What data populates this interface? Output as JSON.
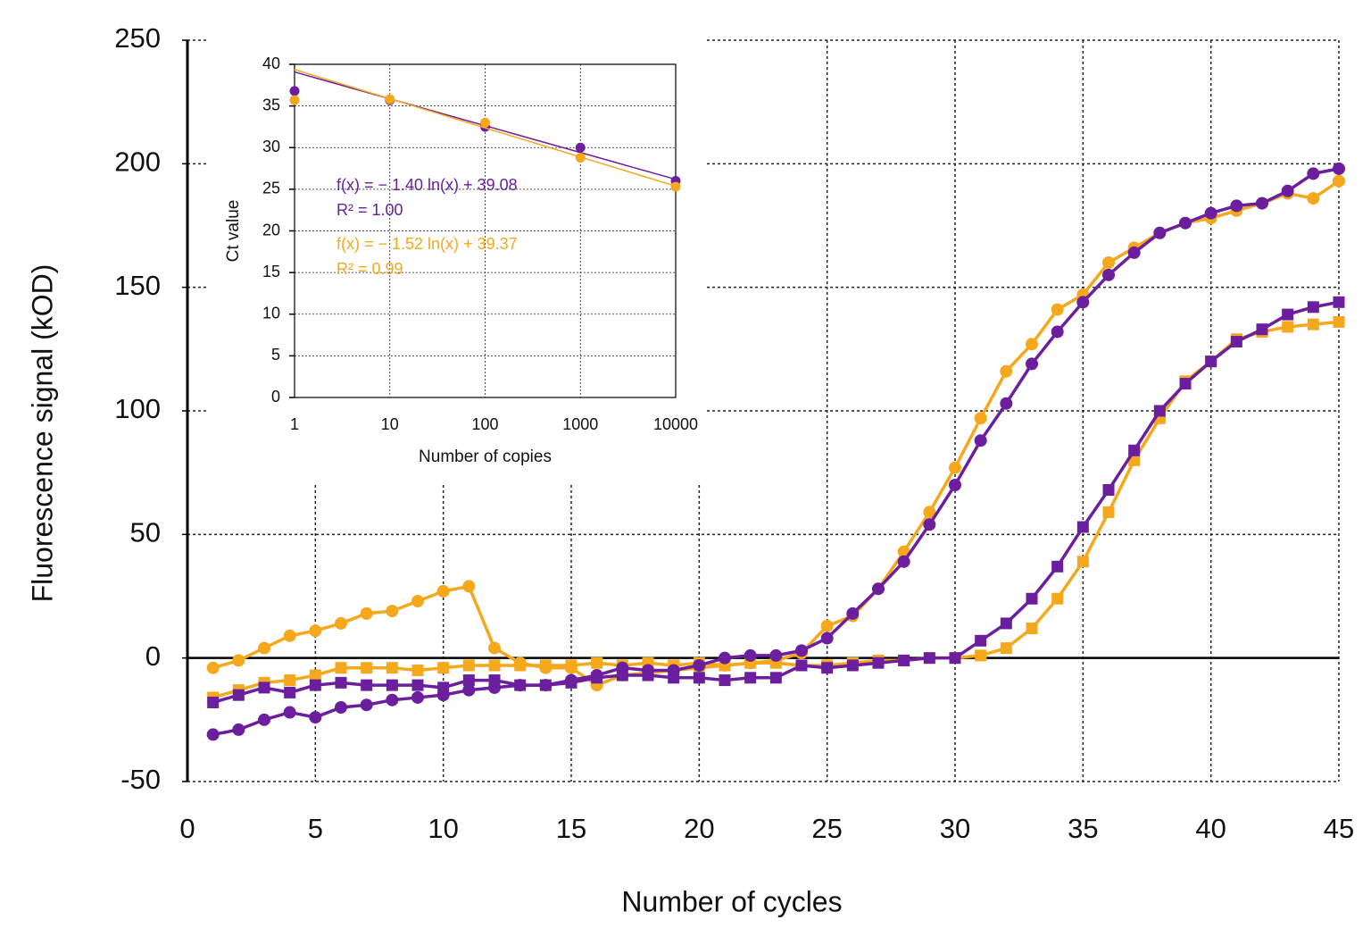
{
  "chart_data": [
    {
      "type": "line",
      "xlabel": "Number of cycles",
      "ylabel": "Fluorescence signal (kOD)",
      "x": [
        1,
        2,
        3,
        4,
        5,
        6,
        7,
        8,
        9,
        10,
        11,
        12,
        13,
        14,
        15,
        16,
        17,
        18,
        19,
        20,
        21,
        22,
        23,
        24,
        25,
        26,
        27,
        28,
        29,
        30,
        31,
        32,
        33,
        34,
        35,
        36,
        37,
        38,
        39,
        40,
        41,
        42,
        43,
        44,
        45
      ],
      "xlim": [
        0,
        45
      ],
      "ylim": [
        -50,
        250
      ],
      "xticks": [
        0,
        5,
        10,
        15,
        20,
        25,
        30,
        35,
        40,
        45
      ],
      "yticks": [
        -50,
        0,
        50,
        100,
        150,
        200,
        250
      ],
      "grid": true,
      "series": [
        {
          "color": "#f5a81c",
          "marker": "circle",
          "values": [
            -4,
            -1,
            4,
            9,
            11,
            14,
            18,
            19,
            23,
            27,
            29,
            4,
            -2,
            -4,
            -4,
            -11,
            -7,
            -6,
            -5,
            -4,
            -3,
            -2,
            -1,
            2,
            13,
            17,
            28,
            43,
            59,
            77,
            97,
            116,
            127,
            141,
            147,
            160,
            166,
            172,
            176,
            178,
            181,
            184,
            188,
            186,
            193
          ]
        },
        {
          "color": "#f5a81c",
          "marker": "square",
          "values": [
            -16,
            -13,
            -10,
            -9,
            -7,
            -4,
            -4,
            -4,
            -5,
            -4,
            -3,
            -3,
            -3,
            -3,
            -3,
            -2,
            -3,
            -2,
            -3,
            -2,
            -3,
            -2,
            -2,
            -3,
            -3,
            -2,
            -1,
            -1,
            0,
            0,
            1,
            4,
            12,
            24,
            39,
            59,
            80,
            97,
            112,
            120,
            129,
            132,
            134,
            135,
            136
          ]
        },
        {
          "color": "#6b1f9e",
          "marker": "circle",
          "values": [
            -31,
            -29,
            -25,
            -22,
            -24,
            -20,
            -19,
            -17,
            -16,
            -15,
            -13,
            -12,
            -11,
            -11,
            -9,
            -7,
            -4,
            -5,
            -5,
            -3,
            0,
            1,
            1,
            3,
            8,
            18,
            28,
            39,
            54,
            70,
            88,
            103,
            119,
            132,
            144,
            155,
            164,
            172,
            176,
            180,
            183,
            184,
            189,
            196,
            198
          ]
        },
        {
          "color": "#6b1f9e",
          "marker": "square",
          "values": [
            -18,
            -15,
            -12,
            -14,
            -11,
            -10,
            -11,
            -11,
            -11,
            -12,
            -9,
            -9,
            -11,
            -11,
            -10,
            -8,
            -7,
            -7,
            -8,
            -8,
            -9,
            -8,
            -8,
            -3,
            -4,
            -3,
            -2,
            -1,
            0,
            0,
            7,
            14,
            24,
            37,
            53,
            68,
            84,
            100,
            111,
            120,
            128,
            133,
            139,
            142,
            144
          ]
        }
      ]
    },
    {
      "type": "scatter",
      "xlabel": "Number of copies",
      "ylabel": "Ct value",
      "xscale": "log",
      "x": [
        1,
        10,
        100,
        1000,
        10000
      ],
      "xlim": [
        1,
        10000
      ],
      "ylim": [
        0,
        40
      ],
      "xticks": [
        1,
        10,
        100,
        1000,
        10000
      ],
      "yticks": [
        0,
        5,
        10,
        15,
        20,
        25,
        30,
        35,
        40
      ],
      "grid": true,
      "series": [
        {
          "color": "#6b1f9e",
          "marker": "circle",
          "values": [
            36.8,
            35.7,
            32.5,
            30,
            26
          ],
          "fit": {
            "slope": -1.4,
            "intercept": 39.08,
            "equation": "f(x) = − 1.40 ln(x) + 39.08",
            "r2": "R² = 1.00"
          }
        },
        {
          "color": "#f5a81c",
          "marker": "circle",
          "values": [
            35.7,
            35.8,
            33,
            28.8,
            25.3
          ],
          "fit": {
            "slope": -1.52,
            "intercept": 39.37,
            "equation": "f(x) = − 1.52 ln(x) + 39.37",
            "r2": "R² = 0.99"
          }
        }
      ]
    }
  ]
}
